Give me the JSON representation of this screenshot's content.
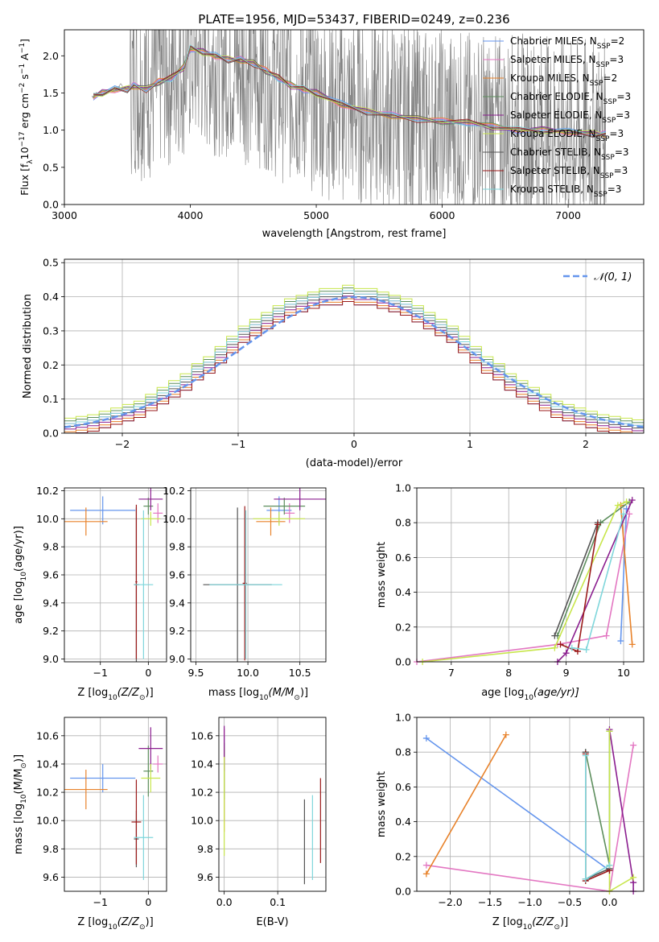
{
  "figure": {
    "title": "PLATE=1956, MJD=53437, FIBERID=0249, z=0.236"
  },
  "chart_data": [
    {
      "id": "spectrum",
      "type": "line",
      "xlabel": "wavelength [Angstrom, rest frame]",
      "ylabel": "Flux [f",
      "ylabel_sub": "λ",
      "ylabel_rest": "10",
      "ylabel_exp": "−17",
      "ylabel_units": " erg cm",
      "ylabel_units_exp": "−2",
      "ylabel_units2": " s",
      "ylabel_units2_exp": "−1",
      "ylabel_units3": " A",
      "ylabel_units3_exp": "−1",
      "ylabel_end": "]",
      "xlim": [
        3000,
        7600
      ],
      "ylim": [
        0,
        2.35
      ],
      "xticks": [
        "3000",
        "4000",
        "5000",
        "6000",
        "7000"
      ],
      "yticks": [
        "0.0",
        "0.5",
        "1.0",
        "1.5",
        "2.0"
      ],
      "grid": false,
      "legend_position": "top-right",
      "data_color": "#808080",
      "data_x": [
        3220,
        3260,
        3300,
        3350,
        3400,
        3450,
        3500,
        3550,
        3600,
        3650,
        3700,
        3750,
        3800,
        3850,
        3900,
        3950,
        4000,
        4100,
        4200,
        4300,
        4400,
        4500,
        4600,
        4700,
        4800,
        4900,
        5000,
        5100,
        5200,
        5300,
        5400,
        5500,
        5600,
        5700,
        5800,
        5900,
        6000,
        6100,
        6200,
        6300,
        6400,
        6500,
        6600,
        6700,
        6800,
        6900,
        7000,
        7100,
        7200,
        7300
      ],
      "data_y": [
        1.45,
        1.5,
        1.48,
        1.52,
        1.55,
        1.6,
        1.55,
        1.7,
        1.6,
        1.65,
        1.55,
        1.7,
        1.8,
        1.75,
        1.95,
        1.9,
        2.05,
        2.0,
        1.95,
        1.9,
        1.85,
        1.8,
        1.75,
        1.6,
        1.55,
        1.5,
        1.45,
        1.35,
        1.3,
        1.3,
        1.25,
        1.2,
        1.2,
        1.15,
        1.15,
        1.1,
        1.1,
        1.1,
        1.05,
        1.05,
        1.0,
        1.0,
        1.05,
        1.0,
        1.0,
        1.0,
        0.95,
        0.95,
        0.95,
        0.95
      ],
      "model_x": [
        3230,
        3300,
        3400,
        3500,
        3550,
        3650,
        3750,
        3850,
        3950,
        4000,
        4100,
        4200,
        4300,
        4400,
        4500,
        4600,
        4700,
        4800,
        4900,
        5000,
        5200,
        5400,
        5600,
        5800,
        6000,
        6200,
        6400,
        6600,
        6800,
        7000,
        7200,
        7300
      ],
      "model_y": [
        1.45,
        1.5,
        1.55,
        1.55,
        1.6,
        1.55,
        1.65,
        1.7,
        1.85,
        2.1,
        2.05,
        2.0,
        1.95,
        1.95,
        1.9,
        1.8,
        1.7,
        1.6,
        1.55,
        1.5,
        1.35,
        1.25,
        1.2,
        1.15,
        1.12,
        1.1,
        1.05,
        1.0,
        1.0,
        0.98,
        0.95,
        0.95
      ],
      "legend": [
        {
          "base": "Chabrier MILES, N",
          "sub": "SSP",
          "eq": "=2",
          "color": "#6495ED"
        },
        {
          "base": "Salpeter MILES, N",
          "sub": "SSP",
          "eq": "=3",
          "color": "#E377C2"
        },
        {
          "base": "Kroupa MILES, N",
          "sub": "SSP",
          "eq": "=2",
          "color": "#E8822A"
        },
        {
          "base": "Chabrier ELODIE, N",
          "sub": "SSP",
          "eq": "=3",
          "color": "#5E8F5E"
        },
        {
          "base": "Salpeter ELODIE, N",
          "sub": "SSP",
          "eq": "=3",
          "color": "#8B1E8F"
        },
        {
          "base": "Kroupa ELODIE, N",
          "sub": "SSP",
          "eq": "=3",
          "color": "#C8E64C"
        },
        {
          "base": "Chabrier STELIB, N",
          "sub": "SSP",
          "eq": "=3",
          "color": "#555555"
        },
        {
          "base": "Salpeter STELIB, N",
          "sub": "SSP",
          "eq": "=3",
          "color": "#9B1B1B"
        },
        {
          "base": "Kroupa STELIB, N",
          "sub": "SSP",
          "eq": "=3",
          "color": "#7FD6DB"
        }
      ]
    },
    {
      "id": "residuals",
      "type": "line",
      "xlabel": "(data-model)/error",
      "ylabel": "Normed distribution",
      "xlim": [
        -2.5,
        2.5
      ],
      "ylim": [
        0,
        0.51
      ],
      "xticks": [
        "−2",
        "−1",
        "0",
        "1",
        "2"
      ],
      "xtick_values": [
        -2,
        -1,
        0,
        1,
        2
      ],
      "yticks": [
        "0.0",
        "0.1",
        "0.2",
        "0.3",
        "0.4",
        "0.5"
      ],
      "grid": true,
      "legend_position": "top-right",
      "gauss_label": "𝒩(0, 1)",
      "gauss_color": "#6495ED",
      "hist_bins": 50,
      "hist_base": [
        0.02,
        0.025,
        0.03,
        0.04,
        0.05,
        0.06,
        0.07,
        0.09,
        0.11,
        0.13,
        0.15,
        0.18,
        0.2,
        0.23,
        0.26,
        0.29,
        0.31,
        0.33,
        0.35,
        0.37,
        0.38,
        0.39,
        0.4,
        0.4,
        0.41,
        0.4,
        0.4,
        0.39,
        0.38,
        0.37,
        0.35,
        0.33,
        0.31,
        0.29,
        0.26,
        0.23,
        0.2,
        0.18,
        0.15,
        0.13,
        0.11,
        0.09,
        0.07,
        0.06,
        0.05,
        0.04,
        0.03,
        0.025,
        0.02,
        0.015
      ]
    },
    {
      "id": "age-vs-Z",
      "type": "scatter",
      "xlabel": "Z [log",
      "xlabel_sub": "10",
      "xlabel_rest": "(Z/Z",
      "xlabel_sun": "⊙",
      "xlabel_end": ")]",
      "ylabel": "age  [log",
      "ylabel_sub": "10",
      "ylabel_rest": "(age/yr)]",
      "xlim": [
        -1.75,
        0.38
      ],
      "ylim": [
        8.98,
        10.22
      ],
      "xticks": [
        "−1",
        "0"
      ],
      "xtick_values": [
        -1,
        0
      ],
      "yticks": [
        "9.0",
        "9.2",
        "9.4",
        "9.6",
        "9.8",
        "10.0",
        "10.2"
      ],
      "grid": true,
      "points": [
        {
          "x": -0.95,
          "y": 10.06,
          "xerr": 0.68,
          "yerr": 0.1,
          "color": "#6495ED"
        },
        {
          "x": 0.2,
          "y": 10.04,
          "xerr": 0.1,
          "yerr": 0.07,
          "color": "#E377C2"
        },
        {
          "x": -1.3,
          "y": 9.98,
          "xerr": 0.45,
          "yerr": 0.1,
          "color": "#E8822A"
        },
        {
          "x": 0.0,
          "y": 10.09,
          "xerr": 0.1,
          "yerr": 0.06,
          "color": "#5E8F5E"
        },
        {
          "x": 0.05,
          "y": 10.14,
          "xerr": 0.25,
          "yerr": 0.08,
          "color": "#8B1E8F"
        },
        {
          "x": 0.05,
          "y": 10.0,
          "xerr": 0.2,
          "yerr": 0.05,
          "color": "#C8E64C"
        },
        {
          "x": -0.25,
          "y": 9.53,
          "xerr": 0.05,
          "yerr": 0.55,
          "color": "#555555"
        },
        {
          "x": -0.25,
          "y": 9.55,
          "xerr": 0.02,
          "yerr": 0.55,
          "color": "#9B1B1B"
        },
        {
          "x": -0.1,
          "y": 9.53,
          "xerr": 0.2,
          "yerr": 0.53,
          "color": "#7FD6DB"
        }
      ]
    },
    {
      "id": "age-vs-mass",
      "type": "scatter",
      "xlabel": "mass [log",
      "xlabel_sub": "10",
      "xlabel_rest": "(M/M",
      "xlabel_sun": "⊙",
      "xlabel_end": ")]",
      "xlim": [
        9.45,
        10.75
      ],
      "ylim": [
        8.98,
        10.22
      ],
      "xticks": [
        "9.5",
        "10.0",
        "10.5"
      ],
      "xtick_values": [
        9.5,
        10.0,
        10.5
      ],
      "yticks": [
        "9.0",
        "9.2",
        "9.4",
        "9.6",
        "9.8",
        "10.0",
        "10.2"
      ],
      "grid": true,
      "points": [
        {
          "x": 10.3,
          "y": 10.06,
          "xerr": 0.12,
          "yerr": 0.1,
          "color": "#6495ED"
        },
        {
          "x": 10.4,
          "y": 10.04,
          "xerr": 0.05,
          "yerr": 0.07,
          "color": "#E377C2"
        },
        {
          "x": 10.22,
          "y": 9.98,
          "xerr": 0.14,
          "yerr": 0.1,
          "color": "#E8822A"
        },
        {
          "x": 10.35,
          "y": 10.09,
          "xerr": 0.2,
          "yerr": 0.06,
          "color": "#5E8F5E"
        },
        {
          "x": 10.5,
          "y": 10.14,
          "xerr": 0.25,
          "yerr": 0.08,
          "color": "#8B1E8F"
        },
        {
          "x": 10.3,
          "y": 10.0,
          "xerr": 0.25,
          "yerr": 0.05,
          "color": "#C8E64C"
        },
        {
          "x": 9.9,
          "y": 9.53,
          "xerr": 0.33,
          "yerr": 0.55,
          "color": "#555555"
        },
        {
          "x": 9.97,
          "y": 9.54,
          "xerr": 0.02,
          "yerr": 0.55,
          "color": "#9B1B1B"
        },
        {
          "x": 9.98,
          "y": 9.53,
          "xerr": 0.35,
          "yerr": 0.53,
          "color": "#7FD6DB"
        }
      ]
    },
    {
      "id": "weight-vs-age",
      "type": "line",
      "xlabel": "age  [log",
      "xlabel_sub": "10",
      "xlabel_rest": "(age/yr)]",
      "ylabel": "mass weight",
      "xlim": [
        6.4,
        10.35
      ],
      "ylim": [
        0,
        1.0
      ],
      "xticks": [
        "7",
        "8",
        "9",
        "10"
      ],
      "xtick_values": [
        7,
        8,
        9,
        10
      ],
      "yticks": [
        "0.0",
        "0.2",
        "0.4",
        "0.6",
        "0.8",
        "1.0"
      ],
      "grid": true,
      "series": [
        {
          "color": "#6495ED",
          "x": [
            9.95,
            10.05
          ],
          "y": [
            0.12,
            0.88
          ]
        },
        {
          "color": "#E377C2",
          "x": [
            6.4,
            8.85,
            9.7,
            10.1
          ],
          "y": [
            0.0,
            0.1,
            0.15,
            0.85
          ]
        },
        {
          "color": "#E8822A",
          "x": [
            10.15,
            9.95
          ],
          "y": [
            0.1,
            0.9
          ]
        },
        {
          "color": "#5E8F5E",
          "x": [
            8.85,
            9.6,
            10.1
          ],
          "y": [
            0.15,
            0.8,
            0.92
          ]
        },
        {
          "color": "#8B1E8F",
          "x": [
            8.85,
            9.0,
            10.15
          ],
          "y": [
            0.0,
            0.05,
            0.93
          ]
        },
        {
          "color": "#C8E64C",
          "x": [
            6.5,
            8.8,
            9.9,
            10.05
          ],
          "y": [
            0.0,
            0.08,
            0.9,
            0.92
          ]
        },
        {
          "color": "#555555",
          "x": [
            8.8,
            9.55
          ],
          "y": [
            0.15,
            0.8
          ]
        },
        {
          "color": "#9B1B1B",
          "x": [
            8.9,
            9.2,
            9.55
          ],
          "y": [
            0.1,
            0.06,
            0.79
          ]
        },
        {
          "color": "#7FD6DB",
          "x": [
            9.1,
            9.35,
            10.0
          ],
          "y": [
            0.08,
            0.07,
            0.85
          ]
        }
      ]
    },
    {
      "id": "mass-vs-Z",
      "type": "scatter",
      "xlabel": "Z [log",
      "xlabel_sub": "10",
      "xlabel_rest": "(Z/Z",
      "xlabel_sun": "⊙",
      "xlabel_end": ")]",
      "ylabel": "mass [log",
      "ylabel_sub": "10",
      "ylabel_rest": "(M/M",
      "ylabel_sun": "⊙",
      "ylabel_end": ")]",
      "xlim": [
        -1.75,
        0.38
      ],
      "ylim": [
        9.5,
        10.73
      ],
      "xticks": [
        "−1",
        "0"
      ],
      "xtick_values": [
        -1,
        0
      ],
      "yticks": [
        "9.6",
        "9.8",
        "10.0",
        "10.2",
        "10.4",
        "10.6"
      ],
      "grid": true,
      "points": [
        {
          "x": -0.95,
          "y": 10.3,
          "xerr": 0.68,
          "yerr": 0.1,
          "color": "#6495ED"
        },
        {
          "x": 0.2,
          "y": 10.4,
          "xerr": 0.1,
          "yerr": 0.06,
          "color": "#E377C2"
        },
        {
          "x": -1.3,
          "y": 10.22,
          "xerr": 0.45,
          "yerr": 0.14,
          "color": "#E8822A"
        },
        {
          "x": 0.0,
          "y": 10.35,
          "xerr": 0.1,
          "yerr": 0.18,
          "color": "#5E8F5E"
        },
        {
          "x": 0.05,
          "y": 10.51,
          "xerr": 0.25,
          "yerr": 0.15,
          "color": "#8B1E8F"
        },
        {
          "x": 0.05,
          "y": 10.3,
          "xerr": 0.2,
          "yerr": 0.1,
          "color": "#C8E64C"
        },
        {
          "x": -0.25,
          "y": 9.87,
          "xerr": 0.05,
          "yerr": 0.2,
          "color": "#555555"
        },
        {
          "x": -0.25,
          "y": 9.99,
          "xerr": 0.1,
          "yerr": 0.3,
          "color": "#9B1B1B"
        },
        {
          "x": -0.1,
          "y": 9.88,
          "xerr": 0.2,
          "yerr": 0.3,
          "color": "#7FD6DB"
        }
      ]
    },
    {
      "id": "mass-vs-ebv",
      "type": "scatter",
      "xlabel": "E(B-V)",
      "xlim": [
        -0.01,
        0.19
      ],
      "ylim": [
        9.5,
        10.73
      ],
      "xticks": [
        "0.0",
        "0.1"
      ],
      "xtick_values": [
        0.0,
        0.1
      ],
      "yticks": [
        "9.6",
        "9.8",
        "10.0",
        "10.2",
        "10.4",
        "10.6"
      ],
      "grid": true,
      "points": [
        {
          "x": 0.0,
          "y": 10.3,
          "xerr": 0.0,
          "yerr": 0.3,
          "color": "#6495ED"
        },
        {
          "x": 0.0,
          "y": 10.4,
          "xerr": 0.0,
          "yerr": 0.25,
          "color": "#E377C2"
        },
        {
          "x": 0.0,
          "y": 10.22,
          "xerr": 0.0,
          "yerr": 0.3,
          "color": "#E8822A"
        },
        {
          "x": 0.0,
          "y": 10.35,
          "xerr": 0.0,
          "yerr": 0.2,
          "color": "#5E8F5E"
        },
        {
          "x": 0.0,
          "y": 10.51,
          "xerr": 0.0,
          "yerr": 0.16,
          "color": "#8B1E8F"
        },
        {
          "x": 0.0,
          "y": 10.1,
          "xerr": 0.0,
          "yerr": 0.35,
          "color": "#C8E64C"
        },
        {
          "x": 0.15,
          "y": 9.85,
          "xerr": 0.0,
          "yerr": 0.3,
          "color": "#555555"
        },
        {
          "x": 0.18,
          "y": 10.0,
          "xerr": 0.0,
          "yerr": 0.3,
          "color": "#9B1B1B"
        },
        {
          "x": 0.165,
          "y": 9.88,
          "xerr": 0.0,
          "yerr": 0.3,
          "color": "#7FD6DB"
        }
      ]
    },
    {
      "id": "weight-vs-Z",
      "type": "line",
      "xlabel": "Z [log",
      "xlabel_sub": "10",
      "xlabel_rest": "(Z/Z",
      "xlabel_sun": "⊙",
      "xlabel_end": ")]",
      "ylabel": "mass weight",
      "xlim": [
        -2.42,
        0.43
      ],
      "ylim": [
        0,
        1.0
      ],
      "xticks": [
        "−2.0",
        "−1.5",
        "−1.0",
        "−0.5",
        "0.0"
      ],
      "xtick_values": [
        -2.0,
        -1.5,
        -1.0,
        -0.5,
        0.0
      ],
      "yticks": [
        "0.0",
        "0.2",
        "0.4",
        "0.6",
        "0.8",
        "1.0"
      ],
      "grid": true,
      "series": [
        {
          "color": "#6495ED",
          "x": [
            -2.3,
            0.0
          ],
          "y": [
            0.88,
            0.12
          ]
        },
        {
          "color": "#E377C2",
          "x": [
            -2.3,
            0.0,
            0.3
          ],
          "y": [
            0.15,
            0.0,
            0.84
          ]
        },
        {
          "color": "#E8822A",
          "x": [
            -2.3,
            -1.3
          ],
          "y": [
            0.1,
            0.9
          ]
        },
        {
          "color": "#5E8F5E",
          "x": [
            -0.3,
            0.0,
            0.0
          ],
          "y": [
            0.8,
            0.15,
            0.92
          ]
        },
        {
          "color": "#8B1E8F",
          "x": [
            0.0,
            0.3,
            0.3
          ],
          "y": [
            0.93,
            0.05,
            0.0
          ]
        },
        {
          "color": "#C8E64C",
          "x": [
            0.0,
            0.0,
            0.3
          ],
          "y": [
            0.92,
            0.0,
            0.08
          ]
        },
        {
          "color": "#555555",
          "x": [
            -0.3,
            -0.3,
            0.0
          ],
          "y": [
            0.8,
            0.07,
            0.13
          ]
        },
        {
          "color": "#9B1B1B",
          "x": [
            -0.3,
            -0.3,
            0.0
          ],
          "y": [
            0.79,
            0.06,
            0.12
          ]
        },
        {
          "color": "#7FD6DB",
          "x": [
            -0.3,
            -0.3,
            0.0
          ],
          "y": [
            0.78,
            0.07,
            0.15
          ]
        }
      ]
    }
  ]
}
